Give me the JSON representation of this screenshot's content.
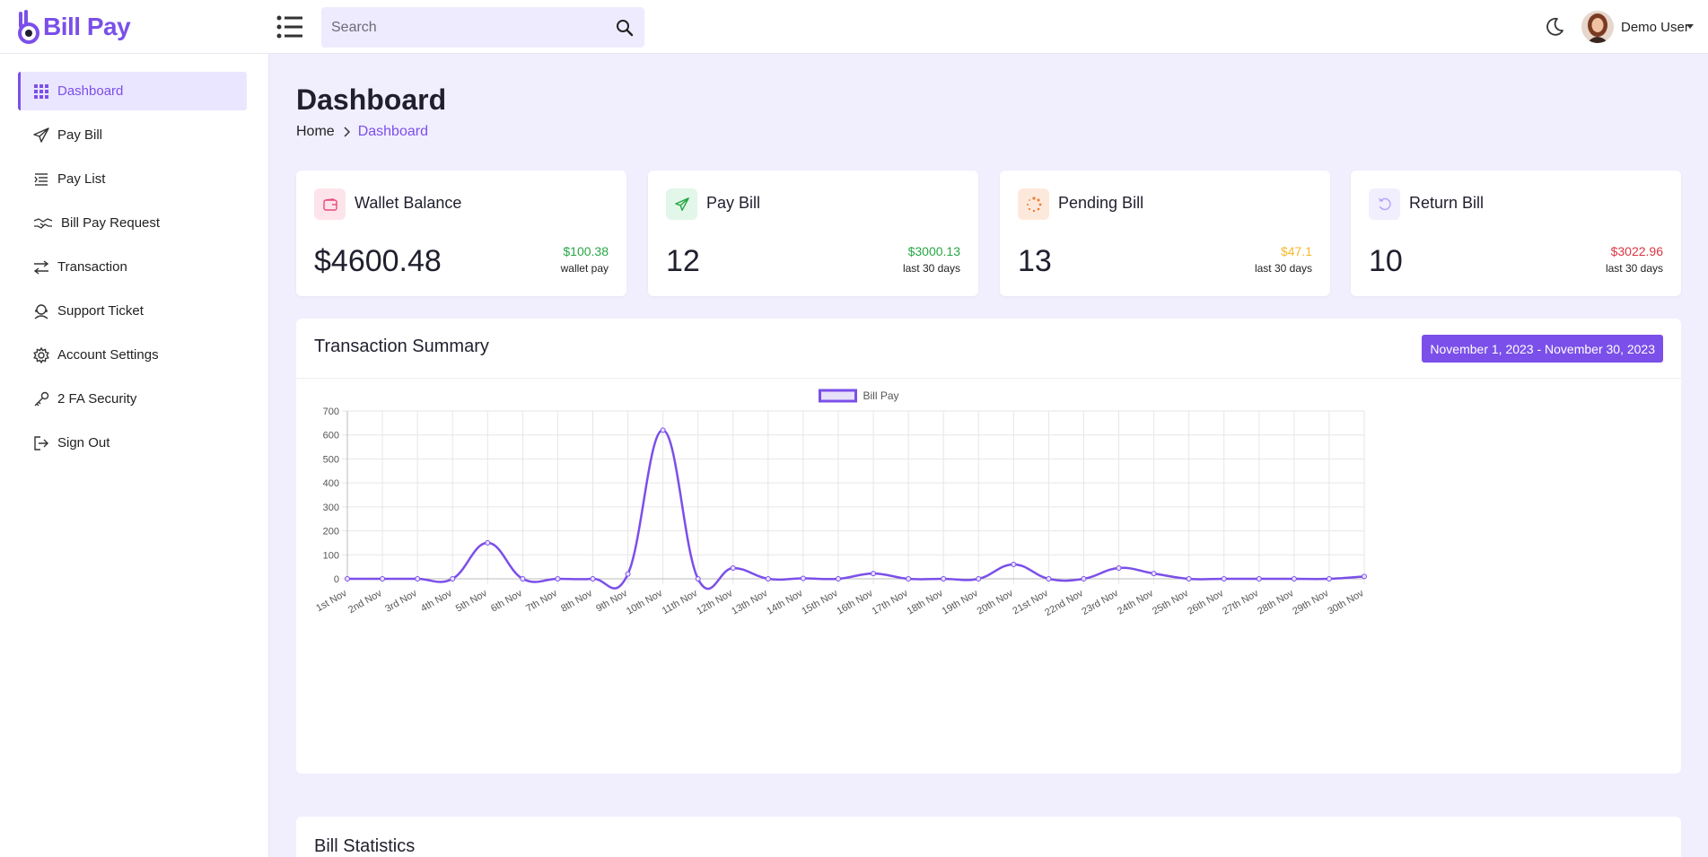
{
  "brand": {
    "name": "Bill Pay",
    "color": "#7b4fe9"
  },
  "header": {
    "search_placeholder": "Search",
    "user_name": "Demo User",
    "icons": [
      "menu-list-icon",
      "search-icon",
      "moon-icon",
      "avatar",
      "caret-down-icon"
    ]
  },
  "sidebar": {
    "items": [
      {
        "label": "Dashboard",
        "icon": "grid-icon",
        "active": true
      },
      {
        "label": "Pay Bill",
        "icon": "send-icon"
      },
      {
        "label": "Pay List",
        "icon": "list-icon"
      },
      {
        "label": "Bill Pay Request",
        "icon": "handshake-icon"
      },
      {
        "label": "Transaction",
        "icon": "arrows-exchange-icon"
      },
      {
        "label": "Support Ticket",
        "icon": "headset-icon"
      },
      {
        "label": "Account Settings",
        "icon": "gear-icon"
      },
      {
        "label": "2 FA Security",
        "icon": "key-icon"
      },
      {
        "label": "Sign Out",
        "icon": "sign-out-icon"
      }
    ]
  },
  "page": {
    "title": "Dashboard",
    "breadcrumb": {
      "home": "Home",
      "current": "Dashboard"
    }
  },
  "cards": [
    {
      "title": "Wallet Balance",
      "value": "$4600.48",
      "change": "$100.38",
      "sub": "wallet pay",
      "change_color": "#28a745",
      "icon": "wallet-icon",
      "icon_bg": "#fde4ea",
      "icon_color": "#e84a7a"
    },
    {
      "title": "Pay Bill",
      "value": "12",
      "change": "$3000.13",
      "sub": "last 30 days",
      "change_color": "#28a745",
      "icon": "send-icon",
      "icon_bg": "#e2f6ea",
      "icon_color": "#28a745"
    },
    {
      "title": "Pending Bill",
      "value": "13",
      "change": "$47.1",
      "sub": "last 30 days",
      "change_color": "#f5b82e",
      "icon": "spinner-icon",
      "icon_bg": "#fde9dc",
      "icon_color": "#f07a2e"
    },
    {
      "title": "Return Bill",
      "value": "10",
      "change": "$3022.96",
      "sub": "last 30 days",
      "change_color": "#dc3545",
      "icon": "undo-icon",
      "icon_bg": "#f1eefe",
      "icon_color": "#b9a6f5"
    }
  ],
  "transaction_summary": {
    "title": "Transaction Summary",
    "date_range": "November 1, 2023 - November 30, 2023"
  },
  "bill_statistics": {
    "title": "Bill Statistics"
  },
  "chart_data": {
    "type": "line",
    "legend": [
      "Bill Pay"
    ],
    "legend_position": "top-center",
    "grid": true,
    "categories": [
      "1st Nov",
      "2nd Nov",
      "3rd Nov",
      "4th Nov",
      "5th Nov",
      "6th Nov",
      "7th Nov",
      "8th Nov",
      "9th Nov",
      "10th Nov",
      "11th Nov",
      "12th Nov",
      "13th Nov",
      "14th Nov",
      "15th Nov",
      "16th Nov",
      "17th Nov",
      "18th Nov",
      "19th Nov",
      "20th Nov",
      "21st Nov",
      "22nd Nov",
      "23rd Nov",
      "24th Nov",
      "25th Nov",
      "26th Nov",
      "27th Nov",
      "28th Nov",
      "29th Nov",
      "30th Nov"
    ],
    "series": [
      {
        "name": "Bill Pay",
        "color": "#7b4fe9",
        "values": [
          0,
          0,
          0,
          0,
          150,
          0,
          0,
          0,
          20,
          620,
          0,
          45,
          0,
          2,
          0,
          22,
          0,
          0,
          0,
          60,
          0,
          0,
          45,
          22,
          0,
          0,
          0,
          0,
          0,
          10
        ]
      }
    ],
    "yticks": [
      0,
      100,
      200,
      300,
      400,
      500,
      600,
      700
    ],
    "ylim": [
      0,
      700
    ]
  }
}
